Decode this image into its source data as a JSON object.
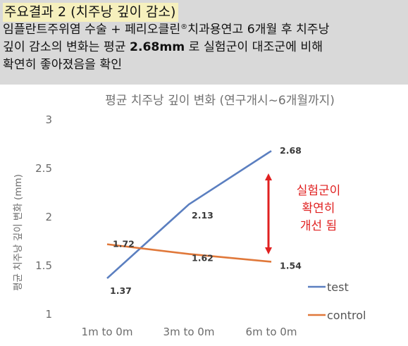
{
  "header": {
    "title": "주요결과 2 (치주낭 깊이 감소)",
    "line1_a": "임플란트주위염 수술 + 페리오클린",
    "line1_reg": "®",
    "line1_b": "치과용연고 6개월 후 치주낭",
    "line2_a": "깊이 감소의 변화는 평균 ",
    "line2_bold": "2.68mm",
    "line2_b": " 로 실험군이 대조군에 비해",
    "line3": "확연히 좋아졌음을 확인"
  },
  "chart_data": {
    "type": "line",
    "title": "평균 치주낭 깊이 변화 (연구개시~6개월까지)",
    "xlabel": "",
    "ylabel": "평균 치주낭 깊이 변화 (mm)",
    "categories": [
      "1m to 0m",
      "3m to 0m",
      "6m to 0m"
    ],
    "ylim": [
      1,
      3
    ],
    "yticks": [
      "1",
      "1.5",
      "2",
      "2.5",
      "3"
    ],
    "grid": false,
    "legend_position": "right",
    "series": [
      {
        "name": "test",
        "values": [
          1.37,
          2.13,
          2.68
        ],
        "labels": [
          "1.37",
          "2.13",
          "2.68"
        ],
        "color": "#5b7fc0"
      },
      {
        "name": "control",
        "values": [
          1.72,
          1.62,
          1.54
        ],
        "labels": [
          "1.72",
          "1.62",
          "1.54"
        ],
        "color": "#e0783a"
      }
    ],
    "annotation": {
      "lines": [
        "실험군이",
        "확연히",
        "개선 됨"
      ],
      "color": "#e02020"
    }
  }
}
